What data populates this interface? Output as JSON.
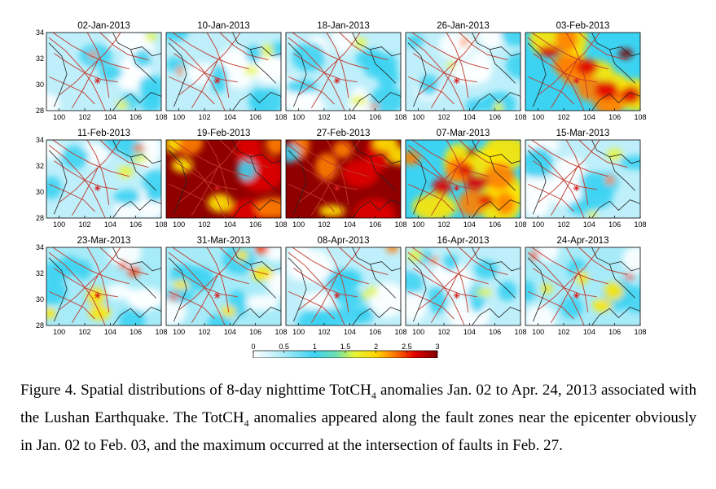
{
  "chart_data": {
    "type": "heatmap",
    "panel_titles": [
      "02-Jan-2013",
      "10-Jan-2013",
      "18-Jan-2013",
      "26-Jan-2013",
      "03-Feb-2013",
      "11-Feb-2013",
      "19-Feb-2013",
      "27-Feb-2013",
      "07-Mar-2013",
      "15-Mar-2013",
      "23-Mar-2013",
      "31-Mar-2013",
      "08-Apr-2013",
      "16-Apr-2013",
      "24-Apr-2013"
    ],
    "x_ticks": [
      "100",
      "102",
      "104",
      "106",
      "108"
    ],
    "y_ticks": [
      "34",
      "32",
      "30",
      "28"
    ],
    "xlim": [
      99,
      108
    ],
    "ylim": [
      28,
      34
    ],
    "epicenter": {
      "lon": 103.0,
      "lat": 30.3
    },
    "colorbar": {
      "ticks": [
        "0",
        "0.5",
        "1",
        "1.5",
        "2",
        "2.5",
        "3"
      ],
      "range": [
        0,
        3
      ],
      "colors": [
        "#ffffff",
        "#3cd3f2",
        "#ffff00",
        "#ff0000",
        "#800000"
      ]
    },
    "panel_levels": [
      "low",
      "low",
      "low",
      "low",
      "high",
      "low",
      "very-high",
      "very-high",
      "high",
      "low",
      "medium",
      "medium",
      "low",
      "low",
      "medium"
    ]
  },
  "caption": {
    "line1_a": "Figure 4. Spatial distributions of 8-day nighttime TotCH",
    "line1_sub": "4",
    "line1_b": " anomalies Jan. 02 to Apr. 24, 2013 associated with the Lushan Earthquake. The TotCH",
    "line1_sub2": "4",
    "line1_c": " anomalies appeared along the fault zones near the epicenter obviously in Jan. 02 to Feb. 03, and the maximum occurred at the intersection of faults in Feb. 27."
  }
}
